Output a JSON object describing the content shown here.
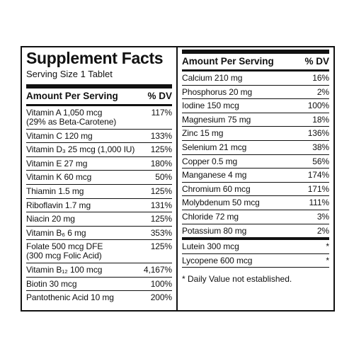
{
  "left": {
    "title": "Supplement Facts",
    "serving": "Serving Size 1 Tablet",
    "header": {
      "amount": "Amount Per Serving",
      "dv": "% DV"
    },
    "rows": [
      {
        "name": "Vitamin A 1,050 mcg",
        "note": "(29% as Beta-Carotene)",
        "dv": "117%"
      },
      {
        "name": "Vitamin C 120 mg",
        "dv": "133%"
      },
      {
        "name": "Vitamin D₃ 25 mcg (1,000 IU)",
        "dv": "125%"
      },
      {
        "name": "Vitamin E  27 mg",
        "dv": "180%"
      },
      {
        "name": "Vitamin K 60 mcg",
        "dv": "50%"
      },
      {
        "name": "Thiamin 1.5 mg",
        "dv": "125%"
      },
      {
        "name": "Riboflavin 1.7 mg",
        "dv": "131%"
      },
      {
        "name": "Niacin 20 mg",
        "dv": "125%"
      },
      {
        "name": "Vitamin B₆ 6 mg",
        "dv": "353%"
      },
      {
        "name": "Folate 500 mcg DFE",
        "note": "(300 mcg Folic Acid)",
        "dv": "125%"
      },
      {
        "name": "Vitamin B₁₂ 100 mcg",
        "dv": "4,167%"
      },
      {
        "name": "Biotin 30 mcg",
        "dv": "100%"
      },
      {
        "name": "Pantothenic Acid 10 mg",
        "dv": "200%"
      }
    ]
  },
  "right": {
    "header": {
      "amount": "Amount Per Serving",
      "dv": "% DV"
    },
    "rows": [
      {
        "name": "Calcium 210 mg",
        "dv": "16%"
      },
      {
        "name": "Phosphorus 20 mg",
        "dv": "2%"
      },
      {
        "name": "Iodine 150 mcg",
        "dv": "100%"
      },
      {
        "name": "Magnesium 75 mg",
        "dv": "18%"
      },
      {
        "name": "Zinc 15 mg",
        "dv": "136%"
      },
      {
        "name": "Selenium 21 mcg",
        "dv": "38%"
      },
      {
        "name": "Copper 0.5 mg",
        "dv": "56%"
      },
      {
        "name": "Manganese 4 mg",
        "dv": "174%"
      },
      {
        "name": "Chromium 60 mcg",
        "dv": "171%"
      },
      {
        "name": "Molybdenum 50 mcg",
        "dv": "111%"
      },
      {
        "name": "Chloride 72 mg",
        "dv": "3%"
      },
      {
        "name": "Potassium 80 mg",
        "dv": "2%"
      }
    ],
    "other_rows": [
      {
        "name": "Lutein 300 mcg",
        "dv": "*"
      },
      {
        "name": "Lycopene 600 mcg",
        "dv": "*"
      }
    ],
    "footnote": "* Daily Value not established."
  }
}
